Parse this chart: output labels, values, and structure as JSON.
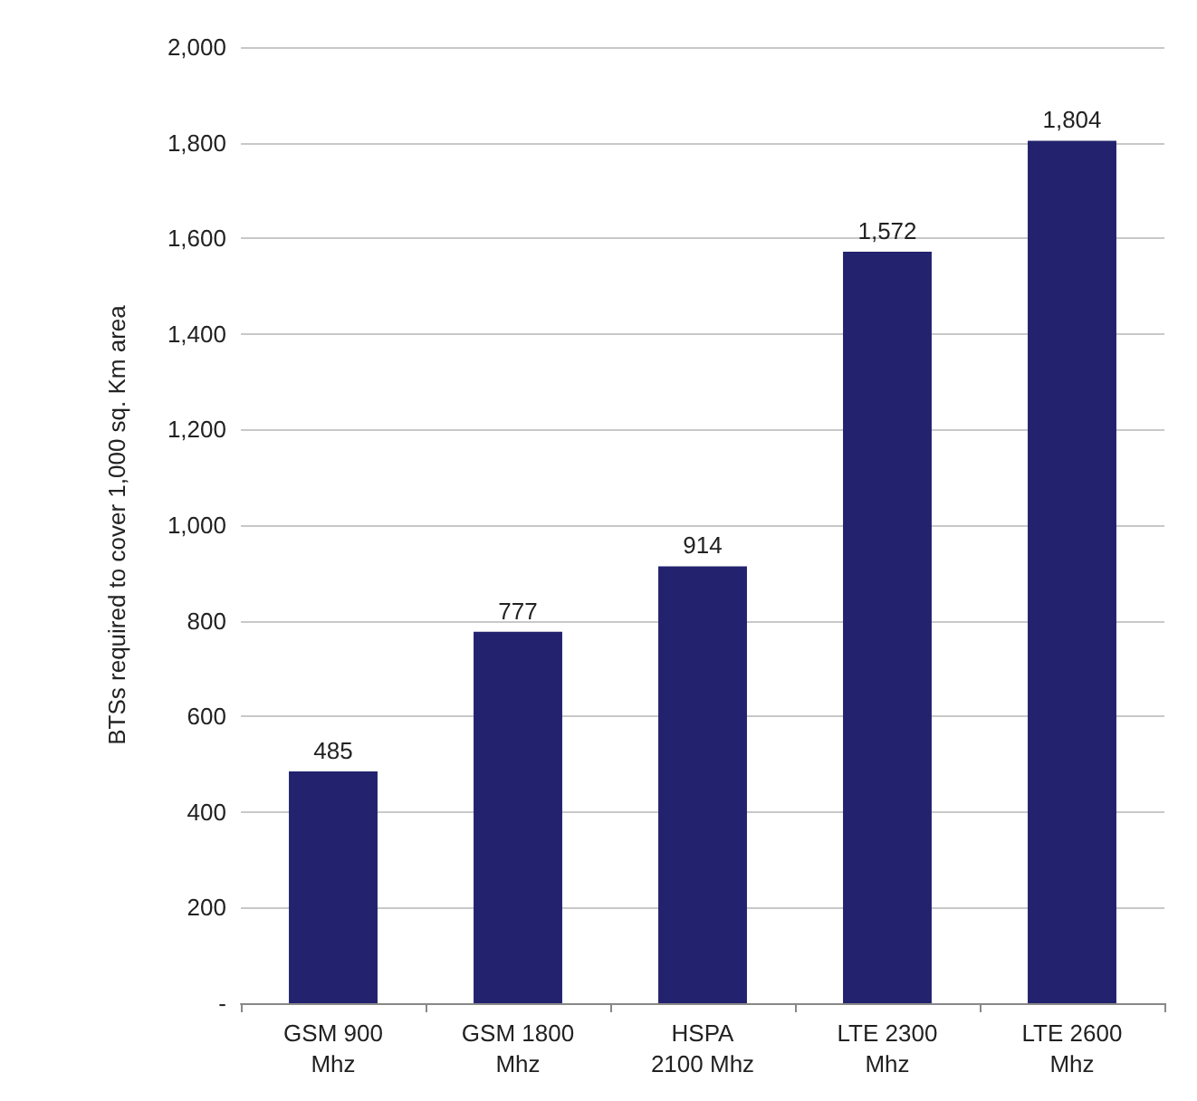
{
  "chart_data": {
    "type": "bar",
    "ylabel": "BTSs required to cover 1,000 sq. Km area",
    "categories": [
      "GSM 900\nMhz",
      "GSM 1800\nMhz",
      "HSPA\n2100 Mhz",
      "LTE 2300\nMhz",
      "LTE 2600\nMhz"
    ],
    "values": [
      485,
      777,
      914,
      1572,
      1804
    ],
    "value_labels": [
      "485",
      "777",
      "914",
      "1,572",
      "1,804"
    ],
    "color": "#22226e",
    "ylim": [
      0,
      2000
    ],
    "yticks": [
      {
        "value": 0,
        "label": "-"
      },
      200,
      400,
      600,
      800,
      {
        "value": 1000,
        "label": "1,000"
      },
      {
        "value": 1200,
        "label": "1,200"
      },
      {
        "value": 1400,
        "label": "1,400"
      },
      {
        "value": 1600,
        "label": "1,600"
      },
      {
        "value": 1800,
        "label": "1,800"
      },
      {
        "value": 2000,
        "label": "2,000"
      }
    ],
    "grid": "y"
  }
}
